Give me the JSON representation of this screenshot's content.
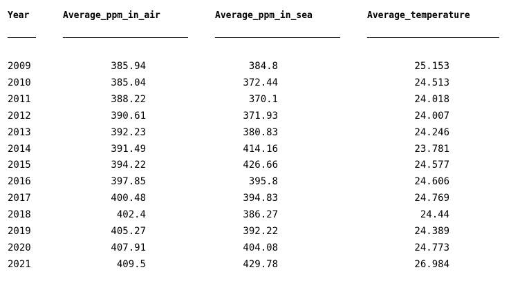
{
  "columns": {
    "year": "Year",
    "air": "Average_ppm_in_air",
    "sea": "Average_ppm_in_sea",
    "temp": "Average_temperature"
  },
  "rows": [
    {
      "year": "2009",
      "air": "385.94",
      "sea": "384.8",
      "temp": "25.153"
    },
    {
      "year": "2010",
      "air": "385.04",
      "sea": "372.44",
      "temp": "24.513"
    },
    {
      "year": "2011",
      "air": "388.22",
      "sea": "370.1",
      "temp": "24.018"
    },
    {
      "year": "2012",
      "air": "390.61",
      "sea": "371.93",
      "temp": "24.007"
    },
    {
      "year": "2013",
      "air": "392.23",
      "sea": "380.83",
      "temp": "24.246"
    },
    {
      "year": "2014",
      "air": "391.49",
      "sea": "414.16",
      "temp": "23.781"
    },
    {
      "year": "2015",
      "air": "394.22",
      "sea": "426.66",
      "temp": "24.577"
    },
    {
      "year": "2016",
      "air": "397.85",
      "sea": "395.8",
      "temp": "24.606"
    },
    {
      "year": "2017",
      "air": "400.48",
      "sea": "394.83",
      "temp": "24.769"
    },
    {
      "year": "2018",
      "air": "402.4",
      "sea": "386.27",
      "temp": "24.44"
    },
    {
      "year": "2019",
      "air": "405.27",
      "sea": "392.22",
      "temp": "24.389"
    },
    {
      "year": "2020",
      "air": "407.91",
      "sea": "404.08",
      "temp": "24.773"
    },
    {
      "year": "2021",
      "air": "409.5",
      "sea": "429.78",
      "temp": "26.984"
    }
  ]
}
